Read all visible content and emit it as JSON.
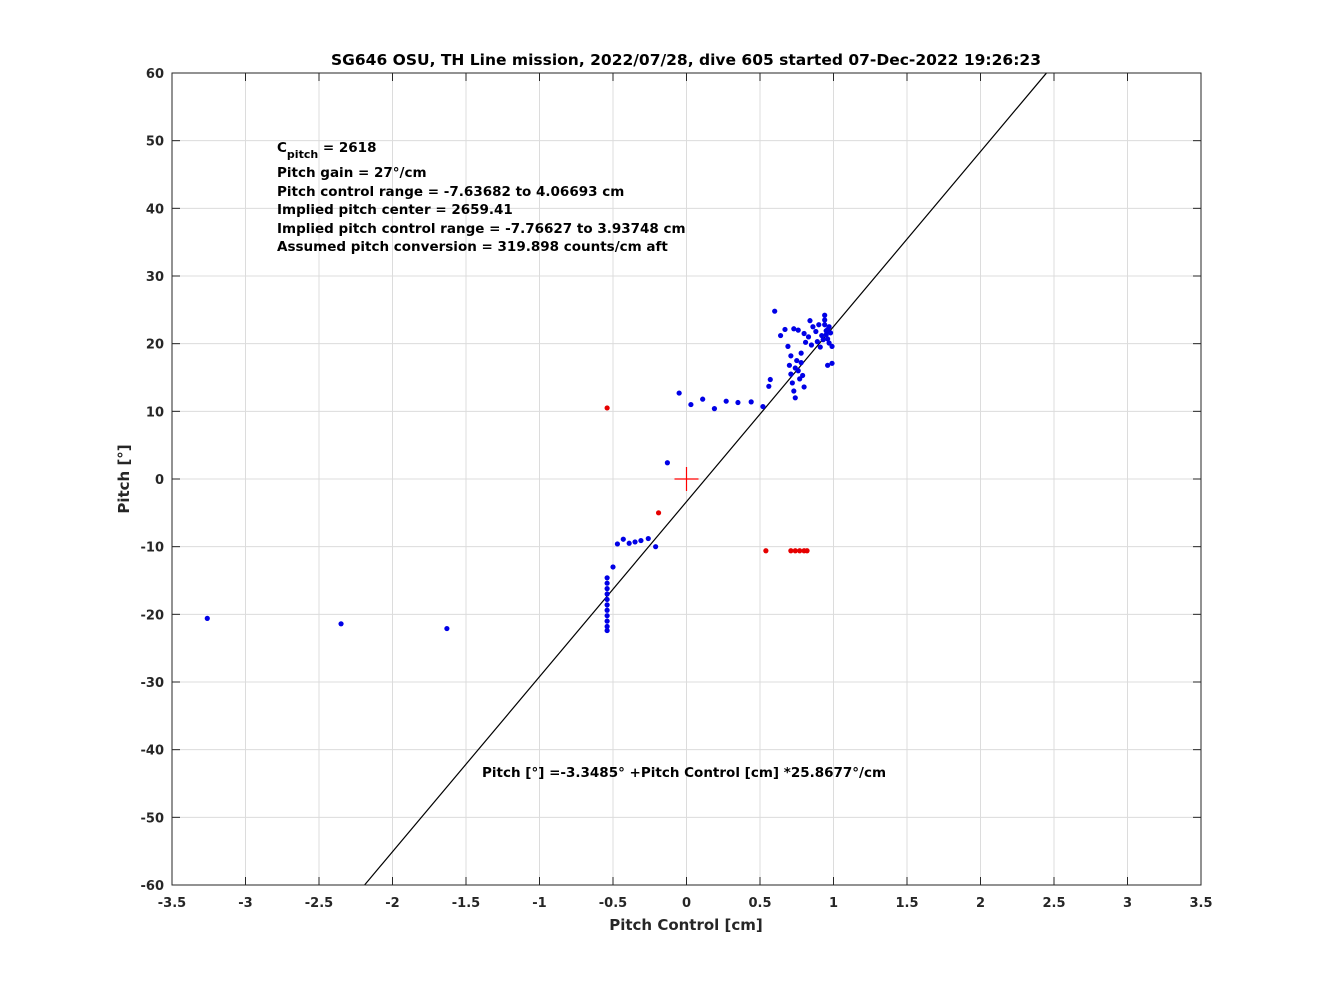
{
  "chart_data": {
    "type": "scatter",
    "title": "SG646 OSU, TH Line mission, 2022/07/28, dive 605 started 07-Dec-2022 19:26:23",
    "xlabel": "Pitch Control [cm]",
    "ylabel": "Pitch [°]",
    "xlim": [
      -3.5,
      3.5
    ],
    "ylim": [
      -60,
      60
    ],
    "xticks": [
      -3.5,
      -3,
      -2.5,
      -2,
      -1.5,
      -1,
      -0.5,
      0,
      0.5,
      1,
      1.5,
      2,
      2.5,
      3,
      3.5
    ],
    "xtick_labels": [
      "-3.5",
      "-3",
      "-2.5",
      "-2",
      "-1.5",
      "-1",
      "-0.5",
      "0",
      "0.5",
      "1",
      "1.5",
      "2",
      "2.5",
      "3",
      "3.5"
    ],
    "yticks": [
      -60,
      -50,
      -40,
      -30,
      -20,
      -10,
      0,
      10,
      20,
      30,
      40,
      50,
      60
    ],
    "ytick_labels": [
      "-60",
      "-50",
      "-40",
      "-30",
      "-20",
      "-10",
      "0",
      "10",
      "20",
      "30",
      "40",
      "50",
      "60"
    ],
    "grid": true,
    "annotations": {
      "cpitch_label": "C",
      "cpitch_subscript": "pitch",
      "cpitch_value": " = 2618",
      "lines": [
        "Pitch gain = 27°/cm",
        "Pitch control range = -7.63682 to 4.06693 cm",
        "Implied pitch center = 2659.41",
        "Implied pitch control range = -7.76627 to 3.93748 cm",
        "Assumed pitch conversion = 319.898 counts/cm aft"
      ],
      "fit_equation": "Pitch [°] =-3.3485° +Pitch Control [cm] *25.8677°/cm"
    },
    "fit_line": {
      "intercept": -3.3485,
      "slope": 25.8677,
      "x_range": [
        -2.19,
        2.45
      ],
      "color": "#000000"
    },
    "center_marker": {
      "x": 0,
      "y": 0,
      "color": "#ff0000"
    },
    "series": [
      {
        "color": "#0000e6",
        "points": [
          [
            -3.26,
            -20.6
          ],
          [
            -2.35,
            -21.4
          ],
          [
            -1.63,
            -22.1
          ],
          [
            -0.54,
            -14.6
          ],
          [
            -0.54,
            -15.4
          ],
          [
            -0.54,
            -16.2
          ],
          [
            -0.54,
            -17.0
          ],
          [
            -0.54,
            -17.8
          ],
          [
            -0.54,
            -18.6
          ],
          [
            -0.54,
            -19.4
          ],
          [
            -0.54,
            -20.2
          ],
          [
            -0.54,
            -21.0
          ],
          [
            -0.54,
            -21.8
          ],
          [
            -0.54,
            -22.4
          ],
          [
            -0.5,
            -13.0
          ],
          [
            -0.47,
            -9.6
          ],
          [
            -0.43,
            -8.9
          ],
          [
            -0.39,
            -9.5
          ],
          [
            -0.35,
            -9.3
          ],
          [
            -0.31,
            -9.1
          ],
          [
            -0.26,
            -8.8
          ],
          [
            -0.21,
            -10.0
          ],
          [
            -0.13,
            2.4
          ],
          [
            -0.05,
            12.7
          ],
          [
            0.03,
            11.0
          ],
          [
            0.11,
            11.8
          ],
          [
            0.19,
            10.4
          ],
          [
            0.27,
            11.5
          ],
          [
            0.35,
            11.3
          ],
          [
            0.44,
            11.4
          ],
          [
            0.52,
            10.7
          ],
          [
            0.56,
            13.7
          ],
          [
            0.57,
            14.7
          ],
          [
            0.6,
            24.8
          ],
          [
            0.64,
            21.2
          ],
          [
            0.67,
            22.1
          ],
          [
            0.69,
            19.6
          ],
          [
            0.7,
            16.8
          ],
          [
            0.71,
            15.5
          ],
          [
            0.72,
            14.2
          ],
          [
            0.73,
            13.0
          ],
          [
            0.74,
            12.0
          ],
          [
            0.75,
            17.5
          ],
          [
            0.76,
            16.0
          ],
          [
            0.77,
            14.8
          ],
          [
            0.78,
            18.6
          ],
          [
            0.79,
            15.3
          ],
          [
            0.8,
            13.6
          ],
          [
            0.81,
            20.2
          ],
          [
            0.73,
            22.2
          ],
          [
            0.76,
            22.0
          ],
          [
            0.8,
            21.5
          ],
          [
            0.83,
            21.0
          ],
          [
            0.84,
            23.4
          ],
          [
            0.85,
            19.8
          ],
          [
            0.86,
            22.5
          ],
          [
            0.88,
            21.8
          ],
          [
            0.89,
            20.3
          ],
          [
            0.9,
            22.8
          ],
          [
            0.91,
            19.5
          ],
          [
            0.92,
            21.2
          ],
          [
            0.93,
            20.6
          ],
          [
            0.94,
            24.2
          ],
          [
            0.94,
            23.5
          ],
          [
            0.94,
            22.8
          ],
          [
            0.95,
            21.9
          ],
          [
            0.95,
            21.3
          ],
          [
            0.96,
            20.7
          ],
          [
            0.96,
            22.1
          ],
          [
            0.97,
            20.1
          ],
          [
            0.97,
            22.5
          ],
          [
            0.98,
            21.6
          ],
          [
            0.99,
            19.6
          ],
          [
            0.99,
            17.1
          ],
          [
            0.96,
            16.8
          ],
          [
            0.74,
            16.4
          ],
          [
            0.78,
            17.2
          ],
          [
            0.71,
            18.2
          ]
        ]
      },
      {
        "color": "#e60000",
        "points": [
          [
            -0.54,
            10.5
          ],
          [
            -0.19,
            -5.0
          ],
          [
            0.54,
            -10.6
          ],
          [
            0.71,
            -10.6
          ],
          [
            0.74,
            -10.6
          ],
          [
            0.77,
            -10.6
          ],
          [
            0.8,
            -10.6
          ],
          [
            0.82,
            -10.6
          ]
        ]
      }
    ]
  }
}
